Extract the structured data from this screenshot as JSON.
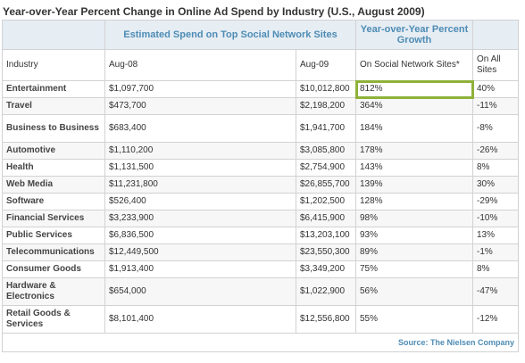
{
  "title": "Year-over-Year Percent Change in Online Ad Spend by Industry (U.S., August 2009)",
  "group_headers": {
    "spend": "Estimated Spend on Top Social Network Sites",
    "growth": "Year-over-Year Percent Growth"
  },
  "columns": {
    "industry": "Industry",
    "aug08": "Aug-08",
    "aug09": "Aug-09",
    "social": "On Social Network Sites*",
    "all": "On All Sites"
  },
  "rows": [
    {
      "industry": "Entertainment",
      "aug08": "$1,097,700",
      "aug09": "$10,012,800",
      "social": "812%",
      "all": "40%"
    },
    {
      "industry": "Travel",
      "aug08": "$473,700",
      "aug09": "$2,198,200",
      "social": "364%",
      "all": "-11%"
    },
    {
      "industry": "Business to Business",
      "aug08": "$683,400",
      "aug09": "$1,941,700",
      "social": "184%",
      "all": "-8%"
    },
    {
      "industry": "Automotive",
      "aug08": "$1,110,200",
      "aug09": "$3,085,800",
      "social": "178%",
      "all": "-26%"
    },
    {
      "industry": "Health",
      "aug08": "$1,131,500",
      "aug09": "$2,754,900",
      "social": "143%",
      "all": "8%"
    },
    {
      "industry": "Web Media",
      "aug08": "$11,231,800",
      "aug09": "$26,855,700",
      "social": "139%",
      "all": "30%"
    },
    {
      "industry": "Software",
      "aug08": "$526,400",
      "aug09": "$1,202,500",
      "social": "128%",
      "all": "-29%"
    },
    {
      "industry": "Financial Services",
      "aug08": "$3,233,900",
      "aug09": "$6,415,900",
      "social": "98%",
      "all": "-10%"
    },
    {
      "industry": "Public Services",
      "aug08": "$6,836,500",
      "aug09": "$13,203,100",
      "social": "93%",
      "all": "13%"
    },
    {
      "industry": "Telecommunications",
      "aug08": "$12,449,500",
      "aug09": "$23,550,300",
      "social": "89%",
      "all": "-1%"
    },
    {
      "industry": "Consumer Goods",
      "aug08": "$1,913,400",
      "aug09": "$3,349,200",
      "social": "75%",
      "all": "8%"
    },
    {
      "industry": "Hardware & Electronics",
      "aug08": "$654,000",
      "aug09": "$1,022,900",
      "social": "56%",
      "all": "-47%"
    },
    {
      "industry": "Retail Goods & Services",
      "aug08": "$8,101,400",
      "aug09": "$12,556,800",
      "social": "55%",
      "all": "-12%"
    }
  ],
  "source": "Source: The Nielsen Company",
  "highlight_color": "#8fb13a",
  "header_text_color": "#4e8cb5"
}
